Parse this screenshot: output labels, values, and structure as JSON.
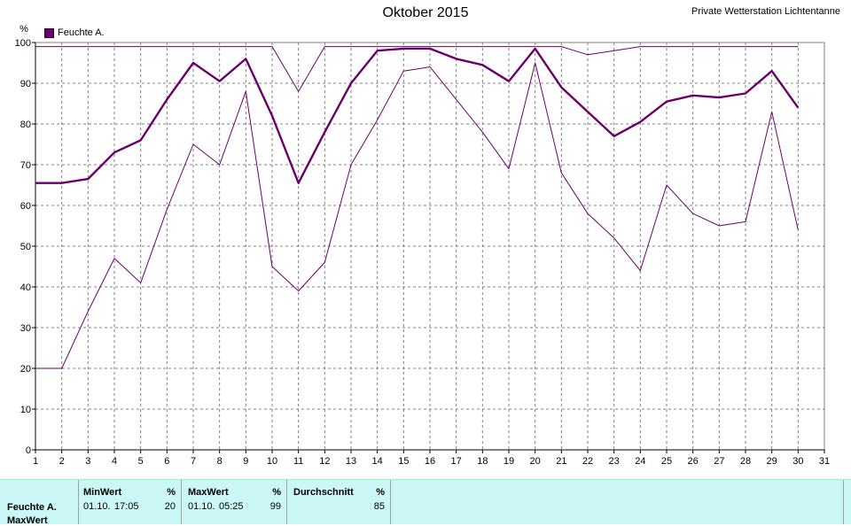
{
  "header": {
    "title": "Oktober 2015",
    "station": "Private Wetterstation Lichtentanne",
    "unit": "%"
  },
  "legend": {
    "label": "Feuchte A."
  },
  "colors": {
    "line": "#6a006a",
    "panel": "#ccf7f7"
  },
  "chart_data": {
    "type": "line",
    "x": [
      1,
      2,
      3,
      4,
      5,
      6,
      7,
      8,
      9,
      10,
      11,
      12,
      13,
      14,
      15,
      16,
      17,
      18,
      19,
      20,
      21,
      22,
      23,
      24,
      25,
      26,
      27,
      28,
      29,
      30
    ],
    "xticks": [
      1,
      2,
      3,
      4,
      5,
      6,
      7,
      8,
      9,
      10,
      11,
      12,
      13,
      14,
      15,
      16,
      17,
      18,
      19,
      20,
      21,
      22,
      23,
      24,
      25,
      26,
      27,
      28,
      29,
      30,
      31
    ],
    "yticks": [
      0,
      10,
      20,
      30,
      40,
      50,
      60,
      70,
      80,
      90,
      100
    ],
    "xlim": [
      1,
      31
    ],
    "ylim": [
      0,
      100
    ],
    "ylabel": "%",
    "grid": true,
    "legend_position": "top-left",
    "series": [
      {
        "name": "Feuchte A.",
        "role": "mean",
        "width": 2.4,
        "values": [
          65.5,
          65.5,
          66.5,
          73,
          76,
          86,
          95,
          90.5,
          96,
          82,
          65.5,
          78,
          90,
          98,
          98.5,
          98.5,
          96,
          94.5,
          90.5,
          98.5,
          89,
          83,
          77,
          80.5,
          85.5,
          87,
          86.5,
          87.5,
          93,
          84
        ]
      },
      {
        "role": "max",
        "width": 1,
        "values": [
          99,
          99,
          99,
          99,
          99,
          99,
          99,
          99,
          99,
          99,
          88,
          99,
          99,
          99,
          99,
          99,
          99,
          99,
          99,
          99,
          99,
          97,
          98,
          99,
          99,
          99,
          99,
          99,
          99,
          99
        ]
      },
      {
        "role": "min",
        "width": 1,
        "values": [
          20,
          20,
          34,
          47,
          41,
          59,
          75,
          70,
          88,
          45,
          39,
          46,
          70,
          81,
          93,
          94,
          86,
          78,
          69,
          95,
          68,
          58,
          52,
          44,
          65,
          58,
          55,
          56,
          83,
          54
        ]
      }
    ]
  },
  "summary": {
    "row_label": "Feuchte A.",
    "row_sublabel": "MaxWert",
    "min": {
      "header": "MinWert",
      "unit": "%",
      "date": "01.10.",
      "time": "17:05",
      "value": "20"
    },
    "max": {
      "header": "MaxWert",
      "unit": "%",
      "date": "01.10.",
      "time": "05:25",
      "value": "99"
    },
    "avg": {
      "header": "Durchschnitt",
      "unit": "%",
      "value": "85"
    }
  }
}
